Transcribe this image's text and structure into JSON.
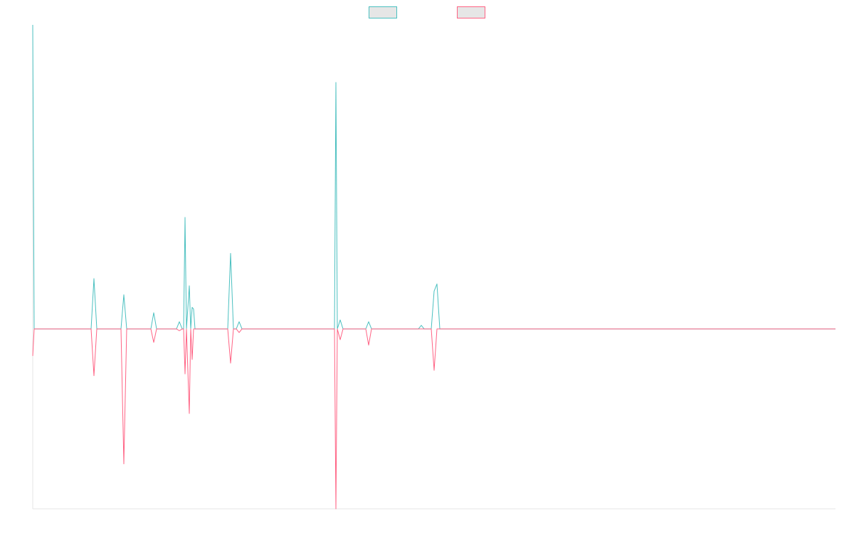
{
  "chart_data": {
    "type": "line",
    "x": [
      0,
      1,
      41,
      43,
      45,
      62,
      64,
      66,
      83,
      85,
      87,
      101,
      103,
      105,
      106,
      107,
      108,
      110,
      111,
      112,
      113,
      114,
      137,
      139,
      141,
      143,
      145,
      147,
      212,
      213,
      214,
      216,
      218,
      234,
      236,
      238,
      271,
      273,
      275,
      280,
      282,
      284,
      286,
      564
    ],
    "series": [
      {
        "color": "#4bc0c0",
        "values": [
          1.69,
          0,
          0,
          0.28,
          0,
          0,
          0.19,
          0,
          0,
          0.09,
          0,
          0,
          0.04,
          0,
          0,
          0.62,
          0,
          0.24,
          0,
          0.12,
          0.11,
          0,
          0,
          0.42,
          0,
          0,
          0.04,
          0,
          0,
          1.37,
          0,
          0.05,
          0,
          0,
          0.04,
          0,
          0,
          0.02,
          0,
          0,
          0.21,
          0.25,
          0,
          0
        ]
      },
      {
        "color": "#ff6384",
        "values": [
          -0.15,
          0,
          0,
          -0.26,
          0,
          0,
          -0.75,
          0,
          0,
          -0.075,
          0,
          0,
          -0.01,
          0,
          0,
          -0.25,
          0,
          -0.47,
          0,
          -0.17,
          0,
          0,
          0,
          -0.19,
          0,
          0,
          -0.02,
          0,
          0,
          -1,
          0,
          -0.06,
          0,
          0,
          -0.09,
          0,
          0,
          0,
          0,
          0,
          -0.23,
          0,
          0,
          0
        ]
      }
    ],
    "xlim": [
      0,
      564
    ],
    "ylim": [
      -1,
      1.69
    ]
  }
}
